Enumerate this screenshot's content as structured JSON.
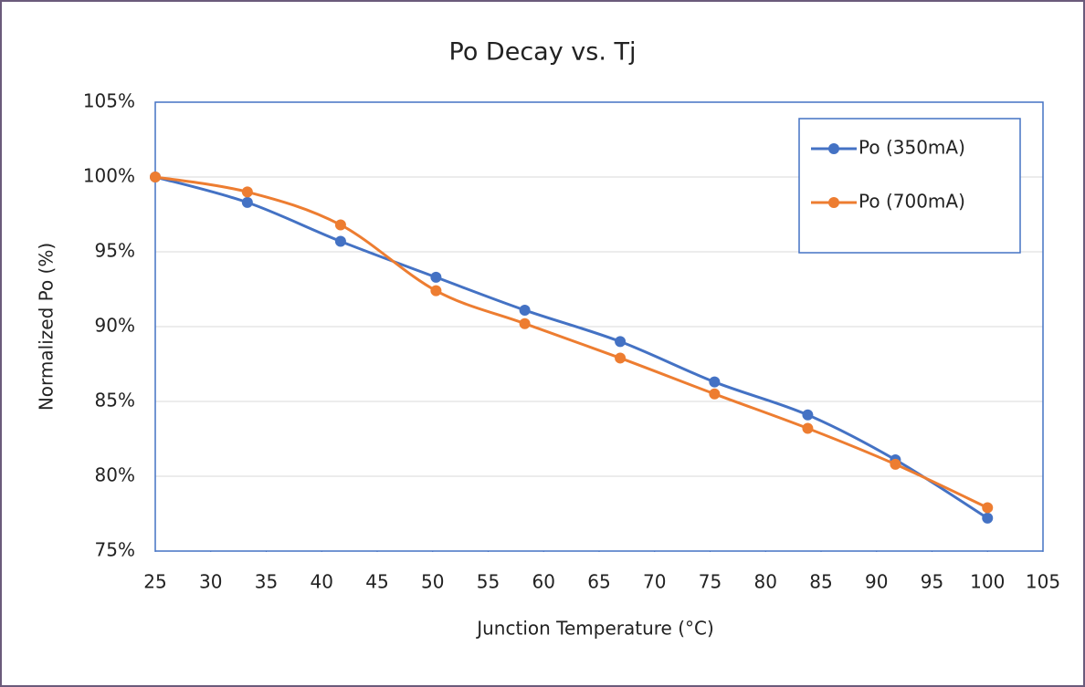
{
  "chart_data": {
    "type": "line",
    "title": "Po Decay vs. Tj",
    "xlabel": "Junction Temperature  (°C)",
    "ylabel": "Normalized Po (%)",
    "x": [
      25,
      33.3,
      41.7,
      50.3,
      58.3,
      66.9,
      75.4,
      83.8,
      91.7,
      100
    ],
    "series": [
      {
        "name": "Po (350mA)",
        "color": "#4472c4",
        "values": [
          100,
          98.3,
          95.7,
          93.3,
          91.1,
          89.0,
          86.3,
          84.1,
          81.1,
          77.2
        ]
      },
      {
        "name": "Po (700mA)",
        "color": "#ed7d31",
        "values": [
          100,
          99.0,
          96.8,
          92.4,
          90.2,
          87.9,
          85.5,
          83.2,
          80.8,
          77.9
        ]
      }
    ],
    "xlim": [
      25,
      105
    ],
    "xticks": [
      25,
      30,
      35,
      40,
      45,
      50,
      55,
      60,
      65,
      70,
      75,
      80,
      85,
      90,
      95,
      100,
      105
    ],
    "ylim": [
      75,
      105
    ],
    "yticks": [
      {
        "value": 75,
        "label": "75%"
      },
      {
        "value": 80,
        "label": "80%"
      },
      {
        "value": 85,
        "label": "85%"
      },
      {
        "value": 90,
        "label": "90%"
      },
      {
        "value": 95,
        "label": "95%"
      },
      {
        "value": 100,
        "label": "100%"
      },
      {
        "value": 105,
        "label": "105%"
      }
    ],
    "grid": true,
    "smooth": true,
    "legend": "upper right"
  }
}
